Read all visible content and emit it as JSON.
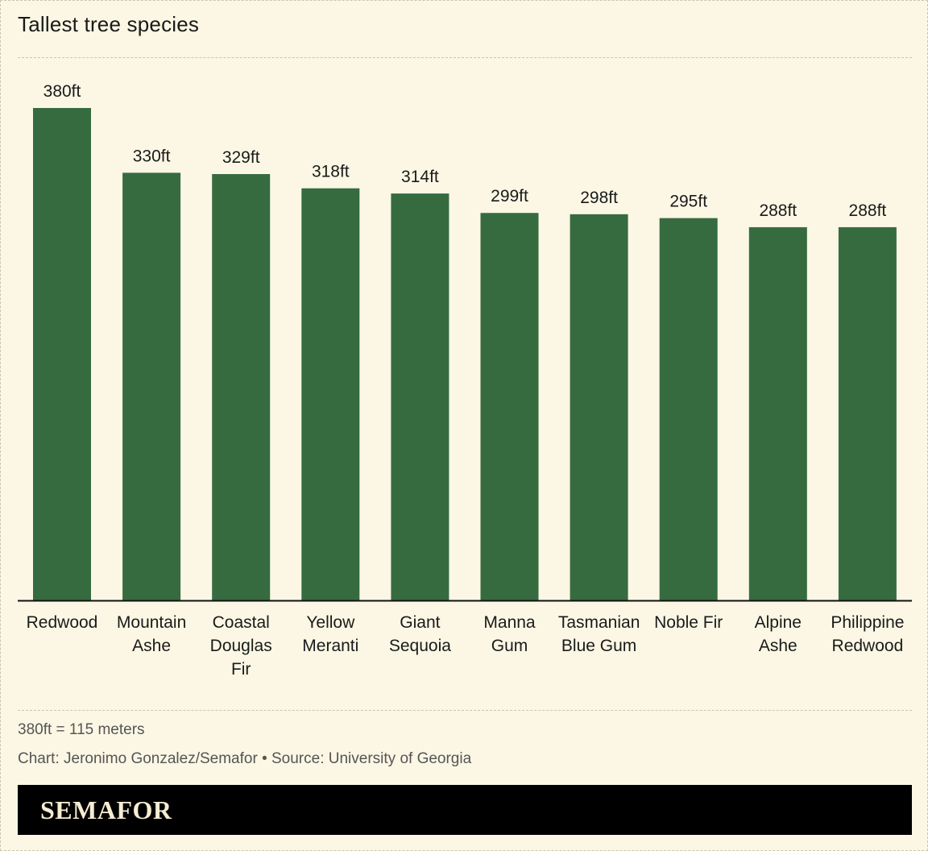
{
  "title": "Tallest tree species",
  "chart_data": {
    "type": "bar",
    "title": "Tallest tree species",
    "categories": [
      [
        "Redwood"
      ],
      [
        "Mountain",
        "Ashe"
      ],
      [
        "Coastal",
        "Douglas",
        "Fir"
      ],
      [
        "Yellow",
        "Meranti"
      ],
      [
        "Giant",
        "Sequoia"
      ],
      [
        "Manna",
        "Gum"
      ],
      [
        "Tasmanian",
        "Blue Gum"
      ],
      [
        "Noble Fir"
      ],
      [
        "Alpine",
        "Ashe"
      ],
      [
        "Philippine",
        "Redwood"
      ]
    ],
    "values": [
      380,
      330,
      329,
      318,
      314,
      299,
      298,
      295,
      288,
      288
    ],
    "value_labels": [
      "380ft",
      "330ft",
      "329ft",
      "318ft",
      "314ft",
      "299ft",
      "298ft",
      "295ft",
      "288ft",
      "288ft"
    ],
    "unit": "ft",
    "ylim": [
      0,
      380
    ],
    "grid": false,
    "bar_color": "#366b40"
  },
  "footnote": "380ft = 115 meters",
  "credit": "Chart: Jeronimo Gonzalez/Semafor • Source: University of Georgia",
  "brand": "SEMAFOR",
  "colors": {
    "background": "#fbf7e4",
    "bar": "#366b40",
    "brand_bar": "#000000",
    "brand_text": "#f5ecd2"
  }
}
